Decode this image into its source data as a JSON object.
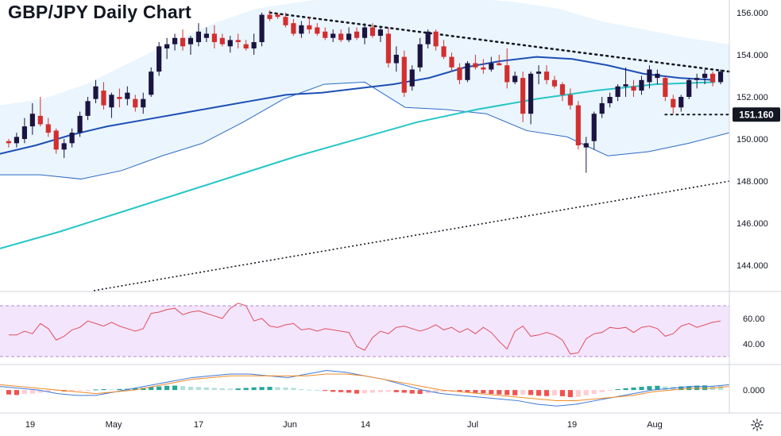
{
  "title": "GBP/JPY Daily Chart",
  "price_label": "151.160",
  "x_labels": [
    "19",
    "May",
    "17",
    "Jun",
    "14",
    "Jul",
    "19",
    "Aug"
  ],
  "colors": {
    "up": "#1b1340",
    "down": "#d32f2f",
    "bollinger_fill": "#e3f2fd",
    "bollinger_line": "#2c69c6",
    "ma_mid": "#1d4fb5",
    "ma_long": "#26c6c6",
    "rsi_line": "#e04f5f",
    "rsi_band": "#f3e5fc",
    "macd_line": "#3f78d8",
    "signal_line": "#f08a24",
    "hist_pos": "#26a69a",
    "hist_neg": "#ef5350",
    "label_bg": "#131722"
  },
  "chart_data": [
    {
      "type": "candlestick",
      "title": "GBP/JPY Daily Chart",
      "ylim": [
        142.8,
        156.6
      ],
      "yticks": [
        144,
        146,
        148,
        150,
        152,
        154,
        156
      ],
      "candles": [
        [
          149.9,
          150.0,
          149.6,
          149.8
        ],
        [
          149.8,
          150.3,
          149.6,
          150.1
        ],
        [
          150.0,
          151.0,
          149.8,
          150.6
        ],
        [
          150.6,
          151.7,
          150.2,
          151.2
        ],
        [
          151.1,
          152.0,
          150.6,
          150.7
        ],
        [
          150.7,
          151.0,
          150.1,
          150.3
        ],
        [
          150.4,
          150.5,
          149.3,
          149.5
        ],
        [
          149.5,
          150.0,
          149.1,
          149.8
        ],
        [
          149.8,
          150.5,
          149.6,
          150.3
        ],
        [
          150.3,
          151.3,
          150.1,
          151.1
        ],
        [
          151.1,
          152.0,
          150.9,
          151.8
        ],
        [
          151.9,
          152.8,
          151.7,
          152.5
        ],
        [
          152.3,
          152.7,
          151.4,
          151.6
        ],
        [
          151.5,
          152.2,
          151.0,
          152.1
        ],
        [
          152.0,
          152.4,
          151.5,
          151.9
        ],
        [
          151.9,
          152.5,
          151.6,
          152.2
        ],
        [
          151.9,
          152.1,
          151.3,
          151.5
        ],
        [
          151.5,
          152.2,
          151.2,
          151.9
        ],
        [
          152.1,
          153.4,
          152.0,
          153.2
        ],
        [
          153.2,
          154.6,
          153.0,
          154.4
        ],
        [
          154.3,
          154.8,
          153.8,
          154.5
        ],
        [
          154.5,
          155.0,
          154.2,
          154.8
        ],
        [
          154.8,
          155.2,
          154.2,
          154.4
        ],
        [
          154.5,
          154.9,
          154.0,
          154.8
        ],
        [
          154.6,
          155.5,
          154.4,
          155.1
        ],
        [
          154.8,
          155.3,
          154.6,
          155.0
        ],
        [
          155.0,
          155.4,
          154.3,
          154.6
        ],
        [
          154.8,
          155.0,
          154.4,
          154.5
        ],
        [
          154.4,
          154.9,
          154.1,
          154.7
        ],
        [
          154.7,
          155.0,
          154.3,
          154.6
        ],
        [
          154.5,
          154.7,
          154.2,
          154.3
        ],
        [
          154.3,
          155.0,
          154.0,
          154.6
        ],
        [
          154.6,
          156.0,
          154.4,
          155.9
        ],
        [
          155.9,
          156.1,
          155.6,
          155.7
        ],
        [
          155.9,
          156.0,
          155.7,
          155.8
        ],
        [
          155.8,
          156.0,
          155.3,
          155.4
        ],
        [
          155.5,
          155.7,
          154.9,
          155.0
        ],
        [
          155.0,
          155.6,
          154.8,
          155.4
        ],
        [
          155.4,
          155.8,
          155.0,
          155.2
        ],
        [
          155.3,
          155.5,
          154.9,
          155.0
        ],
        [
          155.1,
          155.3,
          154.7,
          154.8
        ],
        [
          154.8,
          155.2,
          154.6,
          155.0
        ],
        [
          155.0,
          155.2,
          154.6,
          154.7
        ],
        [
          154.7,
          155.3,
          154.6,
          155.0
        ],
        [
          155.1,
          155.3,
          154.7,
          154.8
        ],
        [
          154.8,
          155.5,
          154.5,
          155.3
        ],
        [
          155.3,
          155.5,
          154.8,
          154.9
        ],
        [
          154.9,
          155.3,
          154.6,
          155.2
        ],
        [
          155.0,
          155.3,
          153.4,
          153.6
        ],
        [
          153.6,
          154.4,
          153.2,
          154.0
        ],
        [
          153.9,
          154.2,
          152.0,
          152.2
        ],
        [
          152.5,
          153.5,
          152.3,
          153.3
        ],
        [
          153.4,
          154.8,
          153.2,
          154.5
        ],
        [
          154.5,
          155.2,
          154.3,
          155.1
        ],
        [
          155.1,
          155.2,
          154.2,
          154.4
        ],
        [
          154.4,
          154.7,
          153.8,
          153.9
        ],
        [
          153.9,
          154.1,
          153.2,
          153.4
        ],
        [
          153.4,
          153.6,
          152.6,
          152.8
        ],
        [
          152.8,
          153.7,
          152.7,
          153.6
        ],
        [
          153.6,
          154.0,
          153.3,
          153.4
        ],
        [
          153.4,
          153.8,
          153.1,
          153.3
        ],
        [
          153.3,
          153.9,
          153.2,
          153.6
        ],
        [
          153.6,
          154.0,
          153.5,
          153.5
        ],
        [
          153.5,
          154.3,
          152.4,
          152.7
        ],
        [
          152.7,
          153.2,
          152.6,
          153.0
        ],
        [
          152.9,
          153.2,
          150.8,
          151.2
        ],
        [
          151.2,
          153.2,
          150.7,
          153.1
        ],
        [
          153.1,
          153.5,
          152.6,
          153.2
        ],
        [
          153.2,
          153.5,
          152.6,
          152.8
        ],
        [
          152.8,
          153.0,
          152.4,
          152.5
        ],
        [
          152.6,
          152.7,
          151.8,
          152.1
        ],
        [
          152.1,
          152.4,
          151.4,
          151.6
        ],
        [
          151.6,
          151.8,
          149.5,
          149.7
        ],
        [
          149.6,
          150.1,
          148.4,
          149.8
        ],
        [
          149.9,
          151.3,
          149.5,
          151.2
        ],
        [
          151.2,
          152.0,
          151.0,
          151.7
        ],
        [
          151.7,
          152.2,
          151.5,
          152.0
        ],
        [
          152.0,
          152.6,
          151.8,
          152.5
        ],
        [
          152.5,
          153.4,
          152.0,
          152.6
        ],
        [
          152.5,
          152.8,
          152.0,
          152.3
        ],
        [
          152.3,
          153.0,
          152.1,
          152.8
        ],
        [
          152.7,
          153.5,
          152.4,
          153.3
        ],
        [
          152.9,
          153.3,
          152.6,
          153.1
        ],
        [
          152.9,
          153.0,
          151.8,
          152.0
        ],
        [
          151.9,
          152.1,
          151.2,
          151.5
        ],
        [
          151.5,
          152.1,
          151.3,
          152.0
        ],
        [
          152.0,
          152.9,
          151.9,
          152.8
        ],
        [
          152.8,
          153.1,
          152.4,
          152.9
        ],
        [
          152.9,
          153.3,
          152.6,
          153.1
        ],
        [
          153.1,
          153.2,
          152.5,
          152.7
        ],
        [
          152.7,
          153.3,
          152.6,
          153.2
        ]
      ],
      "moving_average_mid": [
        149.3,
        149.7,
        150.2,
        150.6,
        150.9,
        151.2,
        151.5,
        151.8,
        152.1,
        152.2,
        152.4,
        152.6,
        152.9,
        153.4,
        153.7,
        153.9,
        153.8,
        153.5,
        153.1,
        152.9,
        152.8
      ],
      "moving_average_long": [
        144.8,
        145.6,
        146.5,
        147.4,
        148.3,
        149.2,
        150.0,
        150.8,
        151.4,
        151.9,
        152.3,
        152.6,
        152.7
      ],
      "bollinger_upper": [
        151.6,
        151.9,
        152.6,
        153.6,
        154.6,
        155.5,
        156.2,
        156.5,
        156.8,
        157.0,
        156.9,
        156.7,
        156.5,
        156.2,
        155.6,
        155.2,
        154.8,
        154.5
      ],
      "bollinger_lower": [
        148.3,
        148.3,
        148.1,
        148.5,
        149.2,
        149.8,
        150.8,
        151.9,
        152.6,
        152.7,
        151.5,
        151.4,
        151.2,
        150.4,
        150.1,
        149.2,
        149.4,
        149.8,
        150.3
      ],
      "resistance_trendline": [
        [
          33,
          156.0
        ],
        [
          91,
          153.2
        ]
      ],
      "support_trendline": [
        [
          -8,
          142.8
        ],
        [
          91,
          148.0
        ]
      ],
      "horizontal_level": 151.16,
      "x_tick_labels": [
        "19",
        "May",
        "17",
        "Jun",
        "14",
        "Jul",
        "19",
        "Aug"
      ]
    },
    {
      "type": "line",
      "name": "RSI",
      "ylim": [
        25,
        75
      ],
      "yticks": [
        40,
        60
      ],
      "band": [
        30,
        70
      ],
      "values": [
        47,
        47,
        50,
        48,
        56,
        52,
        43,
        46,
        51,
        53,
        58,
        56,
        54,
        57,
        54,
        52,
        50,
        52,
        64,
        65,
        67,
        68,
        63,
        65,
        66,
        64,
        62,
        60,
        68,
        72,
        70,
        58,
        60,
        54,
        53,
        55,
        56,
        51,
        52,
        50,
        52,
        51,
        50,
        49,
        38,
        35,
        45,
        50,
        48,
        53,
        54,
        52,
        50,
        52,
        55,
        51,
        53,
        49,
        52,
        48,
        53,
        49,
        42,
        36,
        50,
        54,
        46,
        47,
        49,
        47,
        43,
        32,
        33,
        44,
        48,
        49,
        53,
        52,
        53,
        49,
        53,
        54,
        52,
        46,
        48,
        54,
        56,
        53,
        55,
        57,
        58
      ]
    },
    {
      "type": "line",
      "name": "MACD",
      "yticks": [
        0.0
      ],
      "ylim": [
        -1.2,
        1.3
      ],
      "macd": [
        0.2,
        0.1,
        0.0,
        -0.2,
        -0.3,
        -0.3,
        -0.1,
        0.1,
        0.3,
        0.5,
        0.7,
        0.8,
        0.9,
        0.9,
        0.8,
        0.7,
        0.9,
        1.1,
        1.0,
        0.8,
        0.6,
        0.3,
        0.0,
        -0.2,
        -0.3,
        -0.4,
        -0.5,
        -0.6,
        -0.8,
        -0.9,
        -0.8,
        -0.6,
        -0.4,
        -0.2,
        0.0,
        0.1,
        0.2,
        0.2,
        0.3
      ],
      "signal": [
        0.3,
        0.2,
        0.1,
        0.0,
        -0.1,
        -0.2,
        -0.1,
        0.0,
        0.2,
        0.4,
        0.6,
        0.7,
        0.8,
        0.8,
        0.8,
        0.8,
        0.8,
        0.9,
        0.9,
        0.8,
        0.6,
        0.4,
        0.2,
        0.0,
        -0.1,
        -0.2,
        -0.3,
        -0.4,
        -0.5,
        -0.6,
        -0.6,
        -0.5,
        -0.4,
        -0.3,
        -0.1,
        0.0,
        0.1,
        0.1,
        0.2
      ],
      "histogram": [
        -0.25,
        -0.28,
        -0.22,
        -0.2,
        -0.15,
        -0.1,
        -0.05,
        -0.08,
        -0.06,
        -0.04,
        -0.02,
        0.03,
        0.05,
        0.04,
        0.06,
        0.07,
        0.1,
        0.12,
        0.18,
        0.2,
        0.24,
        0.25,
        0.22,
        0.18,
        0.17,
        0.15,
        0.12,
        0.1,
        0.08,
        0.09,
        0.12,
        0.15,
        0.17,
        0.18,
        0.16,
        0.14,
        0.12,
        0.05,
        0.02,
        0.0,
        -0.05,
        -0.1,
        -0.12,
        -0.15,
        -0.2,
        -0.18,
        -0.15,
        -0.12,
        -0.1,
        -0.12,
        -0.15,
        -0.2,
        -0.22,
        -0.18,
        -0.15,
        -0.1,
        -0.08,
        -0.1,
        -0.12,
        -0.16,
        -0.18,
        -0.22,
        -0.25,
        -0.28,
        -0.3,
        -0.26,
        -0.28,
        -0.32,
        -0.34,
        -0.3,
        -0.35,
        -0.4,
        -0.38,
        -0.3,
        -0.22,
        -0.12,
        -0.05,
        0.05,
        0.1,
        0.14,
        0.18,
        0.22,
        0.24,
        0.2,
        0.18,
        0.2,
        0.22,
        0.25,
        0.26,
        0.24,
        0.23
      ]
    }
  ]
}
